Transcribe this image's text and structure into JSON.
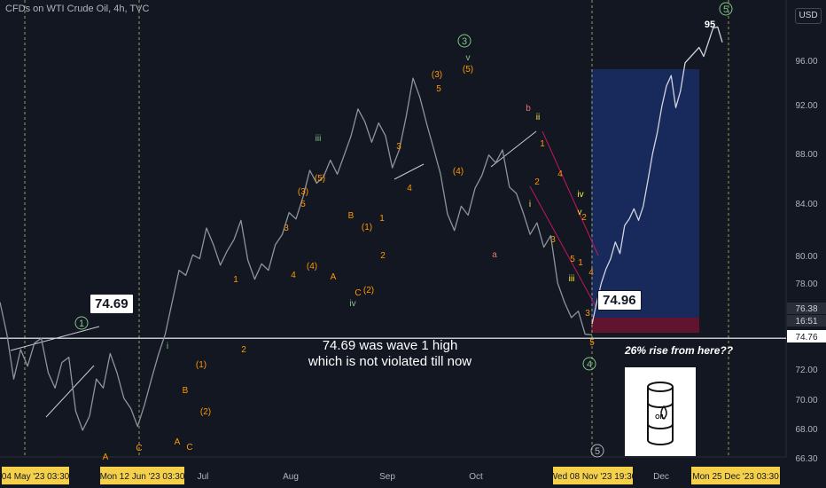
{
  "header": {
    "title": "CFDs on WTI Crude Oil, 4h, TVC",
    "currency": "USD"
  },
  "chart_data": {
    "type": "line",
    "symbol": "WTI Crude Oil",
    "ylim": [
      66.3,
      99.0
    ],
    "y_ticks": [
      "96.00",
      "92.00",
      "88.00",
      "84.00",
      "80.00",
      "78.00",
      "72.00",
      "70.00",
      "68.00",
      "66.30"
    ],
    "x_ticks": [
      "Jul",
      "Aug",
      "Sep",
      "Oct",
      "Dec"
    ],
    "x_highlight_labels": [
      "04 May '23  03:30",
      "Mon 12 Jun '23  03:30",
      "Wed 08 Nov '23  19:30",
      "Mon 25 Dec '23  03:30"
    ],
    "price_labels": [
      {
        "text": "76.38"
      },
      {
        "text": "16:51"
      },
      {
        "text": "74.76"
      }
    ],
    "series": [
      {
        "values": [
          77.5,
          75.0,
          71.5,
          73.8,
          72.5,
          74.3,
          74.69,
          72.0,
          70.8,
          72.8,
          73.2,
          69.0,
          67.5,
          68.6,
          71.5,
          70.8,
          73.5,
          72.0,
          70.0,
          69.2,
          67.8,
          69.5,
          71.5,
          73.4,
          75.0,
          77.5,
          80.0,
          79.6,
          81.2,
          80.9,
          83.3,
          82.0,
          80.4,
          81.5,
          82.4,
          83.9,
          80.8,
          79.3,
          80.5,
          80.0,
          82.0,
          82.8,
          84.5,
          84.0,
          85.7,
          87.8,
          86.8,
          87.3,
          88.6,
          87.5,
          89.0,
          90.5,
          92.6,
          91.6,
          90.0,
          91.5,
          90.5,
          88.0,
          89.4,
          92.0,
          95.0,
          93.5,
          91.4,
          89.5,
          87.5,
          84.4,
          83.1,
          85.0,
          84.3,
          86.4,
          87.4,
          89.0,
          88.4,
          89.4,
          86.5,
          86.0,
          84.5,
          82.8,
          83.7,
          81.8,
          82.7,
          79.0,
          77.5,
          76.3,
          76.8,
          75.0,
          74.96
        ]
      },
      {
        "values": [
          75.8,
          77.5,
          79.0,
          80.1,
          80.9,
          82.2,
          81.3,
          83.5,
          84.0,
          84.8,
          83.9,
          85.0,
          87.0,
          89.1,
          90.7,
          92.8,
          94.4,
          95.2,
          92.7,
          94.0,
          96.2,
          96.6,
          97.0,
          97.4,
          96.7,
          97.8,
          98.9,
          99.0,
          97.8
        ]
      }
    ],
    "levels": [
      {
        "label": "74.69",
        "value": 74.69
      }
    ],
    "annotations": {
      "wave_circles": [
        "1",
        "3",
        "4",
        "5",
        "5"
      ],
      "bubbles": [
        "74.69",
        "74.96"
      ],
      "peak_label": "95",
      "note_lines": [
        "74.69 was wave 1 high",
        "which is not violated till now"
      ],
      "note_question": "26% rise from here??",
      "wave_labels": [
        "A",
        "C",
        "A",
        "B",
        "C",
        "(1)",
        "(2)",
        "i",
        "1",
        "2",
        "3",
        "(3)",
        "5",
        "(4)",
        "4",
        "(5)",
        "iii",
        "A",
        "B",
        "C",
        "(2)",
        "(1)",
        "1",
        "2",
        "iv",
        "3",
        "4",
        "(3)",
        "5",
        "(4)",
        "(5)",
        "v",
        "b",
        "ii",
        "a",
        "i",
        "iii",
        "iv",
        "v",
        "1",
        "2",
        "3",
        "4",
        "5",
        "1",
        "2",
        "3",
        "4",
        "5"
      ],
      "barrel_label": "OIL"
    }
  },
  "colors": {
    "bg": "#131722",
    "candles": "#8f939c",
    "projection": "#d1d4dc",
    "orange": "#ff9800",
    "green": "#81c784",
    "yellow": "#ffeb3b",
    "red": "#ef5350",
    "target_zone": "#1e3a8a",
    "stop_zone": "#6e1430"
  }
}
